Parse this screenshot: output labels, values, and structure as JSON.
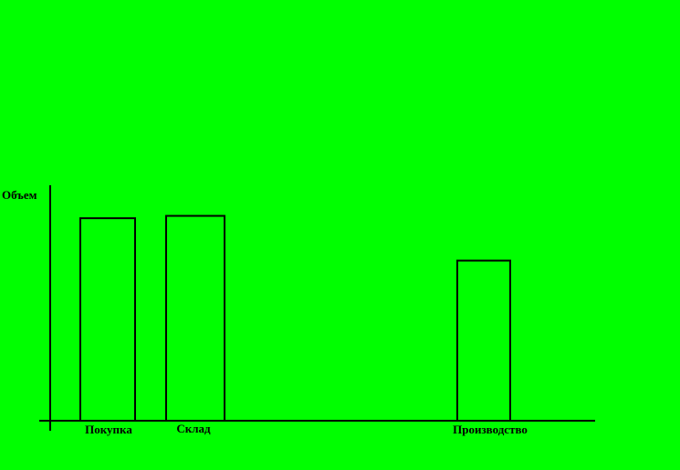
{
  "chart_data": {
    "type": "bar",
    "ylabel": "Объем",
    "categories": [
      "Покупка",
      "Склад",
      "Производство"
    ],
    "values": [
      0.86,
      0.87,
      0.68
    ],
    "ylim": [
      0,
      1
    ],
    "grid": false,
    "colors": {
      "background": "#00ff00",
      "bar_fill": "none",
      "bar_stroke": "#000000",
      "axis": "#000000",
      "text": "#000000"
    }
  }
}
